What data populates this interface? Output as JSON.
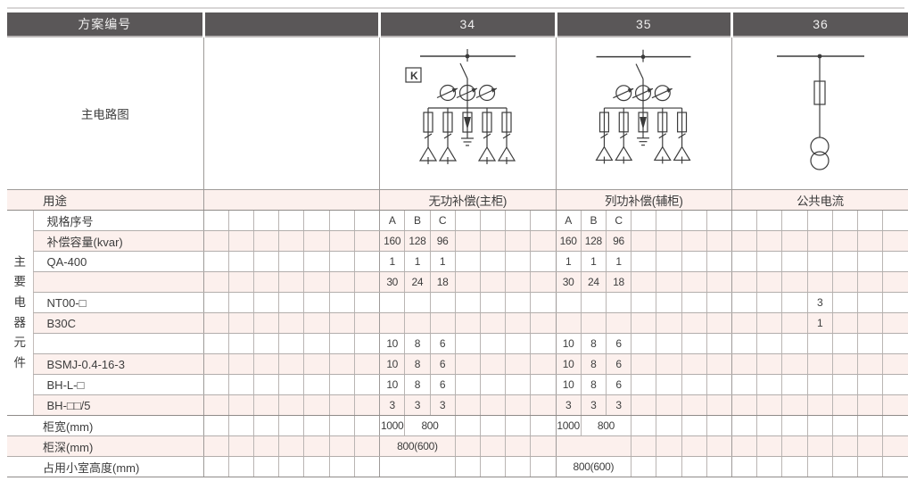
{
  "header": {
    "scheme_label": "方案编号",
    "scheme_blank": "",
    "scheme_34": "34",
    "scheme_35": "35",
    "scheme_36": "36"
  },
  "diagram": {
    "label": "主电路图",
    "k_label": "K",
    "diagram_34": "busbar-switch-K-three-meters-five-branch-fuses-capacitor-deltas-with-arrester",
    "diagram_35": "busbar-switch-three-meters-five-branch-fuses-capacitor-deltas-with-arrester",
    "diagram_36": "busbar-fuse-current-transformer"
  },
  "side_label": "主要电器元件",
  "grid_rows": [
    {
      "label": "用途",
      "cells": [
        {
          "v": "",
          "s": 7
        },
        {
          "v": "无功补偿(主柜)",
          "s": 7
        },
        {
          "v": "列功补偿(辅柜)",
          "s": 7
        },
        {
          "v": "公共电流",
          "s": 7
        }
      ]
    },
    {
      "label": "规格序号",
      "cells": [
        "",
        "",
        "",
        "",
        "",
        "",
        "",
        "A",
        "B",
        "C",
        "",
        "",
        "",
        "",
        "A",
        "B",
        "C",
        "",
        "",
        "",
        "",
        "",
        "",
        "",
        "",
        "",
        "",
        ""
      ]
    },
    {
      "label": "补偿容量(kvar)",
      "cells": [
        "",
        "",
        "",
        "",
        "",
        "",
        "",
        "160",
        "128",
        "96",
        "",
        "",
        "",
        "",
        "160",
        "128",
        "96",
        "",
        "",
        "",
        "",
        "",
        "",
        "",
        "",
        "",
        "",
        ""
      ]
    },
    {
      "label": "QA-400",
      "cells": [
        "",
        "",
        "",
        "",
        "",
        "",
        "",
        "1",
        "1",
        "1",
        "",
        "",
        "",
        "",
        "1",
        "1",
        "1",
        "",
        "",
        "",
        "",
        "",
        "",
        "",
        "",
        "",
        "",
        ""
      ]
    },
    {
      "label": "",
      "cells": [
        "",
        "",
        "",
        "",
        "",
        "",
        "",
        "30",
        "24",
        "18",
        "",
        "",
        "",
        "",
        "30",
        "24",
        "18",
        "",
        "",
        "",
        "",
        "",
        "",
        "",
        "",
        "",
        "",
        ""
      ]
    },
    {
      "label": "NT00-□",
      "cells": [
        "",
        "",
        "",
        "",
        "",
        "",
        "",
        "",
        "",
        "",
        "",
        "",
        "",
        "",
        "",
        "",
        "",
        "",
        "",
        "",
        "",
        "",
        "",
        "",
        "3",
        "",
        "",
        ""
      ]
    },
    {
      "label": "B30C",
      "cells": [
        "",
        "",
        "",
        "",
        "",
        "",
        "",
        "",
        "",
        "",
        "",
        "",
        "",
        "",
        "",
        "",
        "",
        "",
        "",
        "",
        "",
        "",
        "",
        "",
        "1",
        "",
        "",
        ""
      ]
    },
    {
      "label": "",
      "cells": [
        "",
        "",
        "",
        "",
        "",
        "",
        "",
        "10",
        "8",
        "6",
        "",
        "",
        "",
        "",
        "10",
        "8",
        "6",
        "",
        "",
        "",
        "",
        "",
        "",
        "",
        "",
        "",
        "",
        ""
      ]
    },
    {
      "label": "BSMJ-0.4-16-3",
      "cells": [
        "",
        "",
        "",
        "",
        "",
        "",
        "",
        "10",
        "8",
        "6",
        "",
        "",
        "",
        "",
        "10",
        "8",
        "6",
        "",
        "",
        "",
        "",
        "",
        "",
        "",
        "",
        "",
        "",
        ""
      ]
    },
    {
      "label": "BH-L-□",
      "cells": [
        "",
        "",
        "",
        "",
        "",
        "",
        "",
        "10",
        "8",
        "6",
        "",
        "",
        "",
        "",
        "10",
        "8",
        "6",
        "",
        "",
        "",
        "",
        "",
        "",
        "",
        "",
        "",
        "",
        ""
      ]
    },
    {
      "label": "BH-□□/5",
      "cells": [
        "",
        "",
        "",
        "",
        "",
        "",
        "",
        "3",
        "3",
        "3",
        "",
        "",
        "",
        "",
        "3",
        "3",
        "3",
        "",
        "",
        "",
        "",
        "",
        "",
        "",
        "",
        "",
        "",
        ""
      ]
    },
    {
      "label": "柜宽(mm)",
      "cells": [
        "",
        "",
        "",
        "",
        "",
        "",
        "",
        "1000",
        {
          "v": "800",
          "s": 2
        },
        "",
        "",
        "",
        "",
        "1000",
        {
          "v": "800",
          "s": 2
        },
        "",
        "",
        "",
        "",
        "",
        "",
        "",
        "",
        "",
        "",
        ""
      ]
    },
    {
      "label": "柜深(mm)",
      "cells": [
        "",
        "",
        "",
        "",
        "",
        "",
        "",
        {
          "v": "800(600)",
          "s": 3
        },
        "",
        "",
        "",
        "",
        {
          "v": "",
          "s": 3
        },
        "",
        "",
        "",
        "",
        "",
        "",
        "",
        "",
        "",
        "",
        ""
      ]
    },
    {
      "label": "占用小室高度(mm)",
      "cells": [
        "",
        "",
        "",
        "",
        "",
        "",
        "",
        {
          "v": "",
          "s": 3
        },
        "",
        "",
        "",
        "",
        {
          "v": "800(600)",
          "s": 3
        },
        "",
        "",
        "",
        "",
        "",
        "",
        "",
        "",
        "",
        "",
        ""
      ]
    }
  ],
  "colors": {
    "header_bg": "#5a5758",
    "stripe_pink": "#fcf0ed",
    "section_line": "#9e9a98",
    "cell_line": "#bab5b3",
    "circuit_ink": "#3b3b3b"
  }
}
